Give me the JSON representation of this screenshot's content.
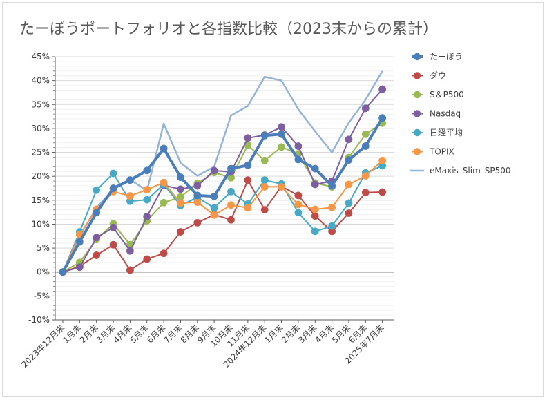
{
  "chart_data": {
    "type": "line",
    "title": "たーぼうポートフォリオと各指数比較（2023末からの累計）",
    "xlabel": "",
    "ylabel": "",
    "ylim": [
      -10,
      45
    ],
    "y_ticks": [
      "45%",
      "40%",
      "35%",
      "30%",
      "25%",
      "20%",
      "15%",
      "10%",
      "5%",
      "0%",
      "-5%",
      "-10%"
    ],
    "grid": true,
    "legend_position": "right",
    "categories": [
      "2023年12月末",
      "1月末",
      "2月末",
      "3月末",
      "4月末",
      "5月末",
      "6月末",
      "7月末",
      "8月末",
      "9月末",
      "10月末",
      "11月末",
      "2024年12月末",
      "1月末",
      "2月末",
      "3月末",
      "4月末",
      "5月末",
      "6月末",
      "2025年7月末"
    ],
    "series": [
      {
        "name": "たーぼう",
        "color": "#4a7ebb",
        "markers": true,
        "width": 4,
        "values": [
          0,
          6.3,
          12.4,
          17.5,
          19.2,
          21.2,
          25.8,
          19.8,
          16.0,
          15.8,
          21.6,
          22.3,
          28.5,
          28.8,
          23.5,
          21.6,
          18.0,
          23.4,
          26.3,
          32.2
        ]
      },
      {
        "name": "ダウ",
        "color": "#be4b48",
        "markers": true,
        "width": 2,
        "values": [
          0,
          1.2,
          3.5,
          5.7,
          0.4,
          2.7,
          3.9,
          8.4,
          10.3,
          12.0,
          10.9,
          19.2,
          13.0,
          17.9,
          16.0,
          11.7,
          8.5,
          12.3,
          16.6,
          16.7
        ]
      },
      {
        "name": "S＆P500",
        "color": "#98b954",
        "markers": true,
        "width": 2,
        "values": [
          0,
          2.0,
          6.8,
          10.1,
          5.7,
          10.7,
          14.5,
          15.7,
          18.5,
          20.8,
          19.7,
          26.5,
          23.3,
          26.1,
          24.7,
          18.6,
          17.8,
          23.9,
          28.8,
          31.1
        ]
      },
      {
        "name": "Nasdaq",
        "color": "#7d5fa0",
        "markers": true,
        "width": 2,
        "values": [
          0,
          1.0,
          7.2,
          9.3,
          4.4,
          11.6,
          18.1,
          17.3,
          18.0,
          21.2,
          20.9,
          28.0,
          28.6,
          30.3,
          26.3,
          18.3,
          19.0,
          27.7,
          34.2,
          38.2
        ]
      },
      {
        "name": "日経平均",
        "color": "#46aac5",
        "markers": true,
        "width": 2,
        "values": [
          0,
          8.4,
          17.1,
          20.6,
          14.8,
          15.1,
          18.3,
          13.9,
          15.6,
          13.4,
          16.8,
          14.2,
          19.2,
          18.4,
          12.4,
          8.5,
          9.6,
          14.4,
          20.7,
          22.2
        ]
      },
      {
        "name": "TOPIX",
        "color": "#f79646",
        "markers": true,
        "width": 2,
        "values": [
          0,
          7.8,
          13.1,
          16.8,
          15.9,
          17.2,
          18.7,
          14.4,
          14.6,
          11.9,
          14.0,
          13.4,
          17.8,
          17.8,
          14.1,
          13.1,
          13.5,
          18.3,
          20.1,
          23.3
        ]
      },
      {
        "name": "eMaxis_Slim_SP500",
        "color": "#95b3d7",
        "markers": false,
        "width": 2.5,
        "values": [
          0,
          7.5,
          13.4,
          17.3,
          19.3,
          17.0,
          31.0,
          22.8,
          20.1,
          22.0,
          32.7,
          34.7,
          40.8,
          40.0,
          34.0,
          29.4,
          25.0,
          31.2,
          36.0,
          42.0
        ]
      }
    ]
  }
}
